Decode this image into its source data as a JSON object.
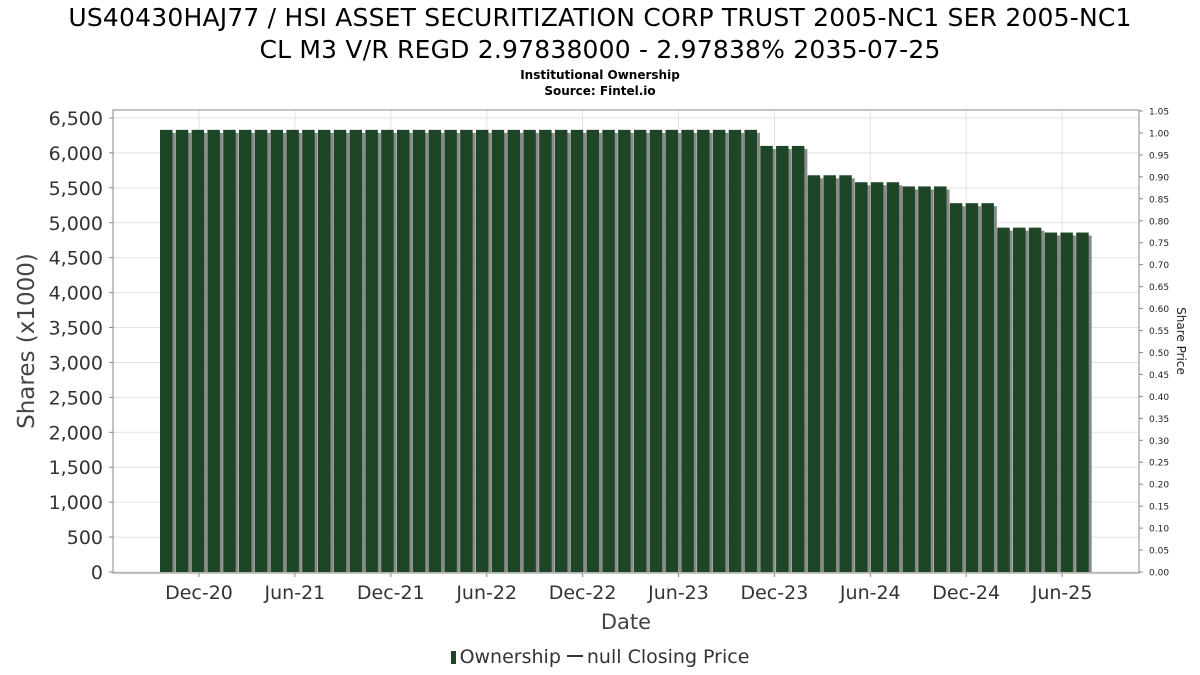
{
  "header": {
    "title_line1": "US40430HAJ77 / HSI ASSET SECURITIZATION CORP TRUST 2005-NC1 SER 2005-NC1",
    "title_line2": "CL M3 V/R REGD 2.97838000 - 2.97838% 2035-07-25",
    "subtitle": "Institutional Ownership",
    "source": "Source: Fintel.io"
  },
  "legend": {
    "ownership_label": "Ownership",
    "price_label": "null Closing Price"
  },
  "colors": {
    "bar": "#1d4526",
    "bar_shadow": "#8a8a8a",
    "grid": "#e2e2e2",
    "axis": "#888888"
  },
  "chart_data": {
    "type": "bar",
    "xlabel": "Date",
    "ylabel": "Shares (x1000)",
    "y2label": "Share Price",
    "ylim": [
      0,
      6600
    ],
    "y2lim": [
      0,
      1.05
    ],
    "grid": true,
    "legend_position": "bottom",
    "y_ticks": [
      "0",
      "500",
      "1,000",
      "1,500",
      "2,000",
      "2,500",
      "3,000",
      "3,500",
      "4,000",
      "4,500",
      "5,000",
      "5,500",
      "6,000",
      "6,500"
    ],
    "y2_ticks": [
      "0.00",
      "0.05",
      "0.10",
      "0.15",
      "0.20",
      "0.25",
      "0.30",
      "0.35",
      "0.40",
      "0.45",
      "0.50",
      "0.55",
      "0.60",
      "0.65",
      "0.70",
      "0.75",
      "0.80",
      "0.85",
      "0.90",
      "0.95",
      "1.00",
      "1.05"
    ],
    "x_ticks": [
      "Dec-20",
      "Jun-21",
      "Dec-21",
      "Jun-22",
      "Dec-22",
      "Jun-23",
      "Dec-23",
      "Jun-24",
      "Dec-24",
      "Jun-25"
    ],
    "series": [
      {
        "name": "Ownership",
        "values": [
          6330,
          6330,
          6330,
          6330,
          6330,
          6330,
          6330,
          6330,
          6330,
          6330,
          6330,
          6330,
          6330,
          6330,
          6330,
          6330,
          6330,
          6330,
          6330,
          6330,
          6330,
          6330,
          6330,
          6330,
          6330,
          6330,
          6330,
          6330,
          6330,
          6330,
          6330,
          6330,
          6330,
          6330,
          6330,
          6330,
          6330,
          6330,
          6100,
          6100,
          6100,
          5680,
          5680,
          5680,
          5580,
          5580,
          5580,
          5520,
          5520,
          5520,
          5280,
          5280,
          5280,
          4930,
          4930,
          4930,
          4860,
          4860,
          4860
        ]
      }
    ]
  }
}
